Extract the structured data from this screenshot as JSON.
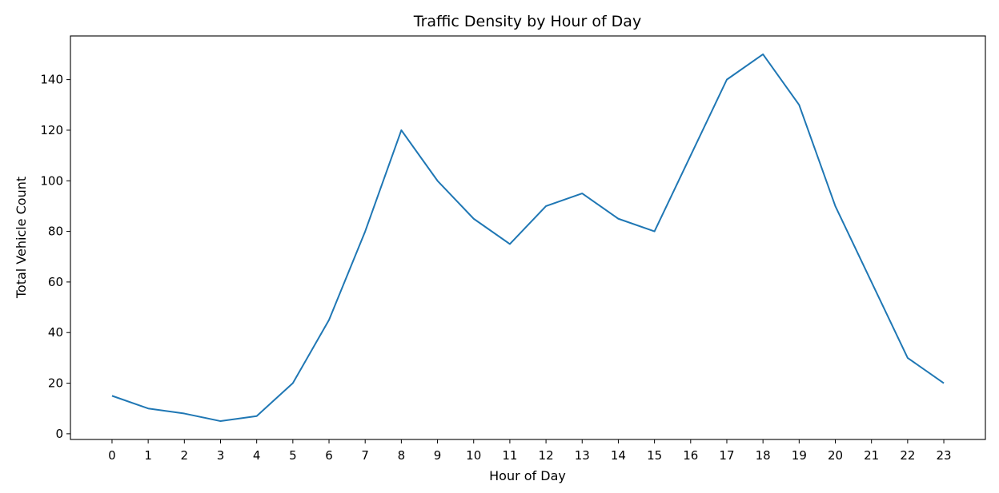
{
  "chart_data": {
    "type": "line",
    "title": "Traffic Density by Hour of Day",
    "xlabel": "Hour of Day",
    "ylabel": "Total Vehicle Count",
    "x": [
      0,
      1,
      2,
      3,
      4,
      5,
      6,
      7,
      8,
      9,
      10,
      11,
      12,
      13,
      14,
      15,
      16,
      17,
      18,
      19,
      20,
      21,
      22,
      23
    ],
    "series": [
      {
        "values": [
          15,
          10,
          8,
          5,
          7,
          20,
          45,
          80,
          120,
          100,
          85,
          75,
          90,
          95,
          85,
          80,
          110,
          140,
          150,
          130,
          90,
          60,
          30,
          20
        ],
        "color": "#1f77b4"
      }
    ],
    "xticks": [
      0,
      1,
      2,
      3,
      4,
      5,
      6,
      7,
      8,
      9,
      10,
      11,
      12,
      13,
      14,
      15,
      16,
      17,
      18,
      19,
      20,
      21,
      22,
      23
    ],
    "yticks": [
      0,
      20,
      40,
      60,
      80,
      100,
      120,
      140
    ],
    "xlim": [
      -1.15,
      24.15
    ],
    "ylim": [
      -2.25,
      157.25
    ],
    "grid": false
  }
}
